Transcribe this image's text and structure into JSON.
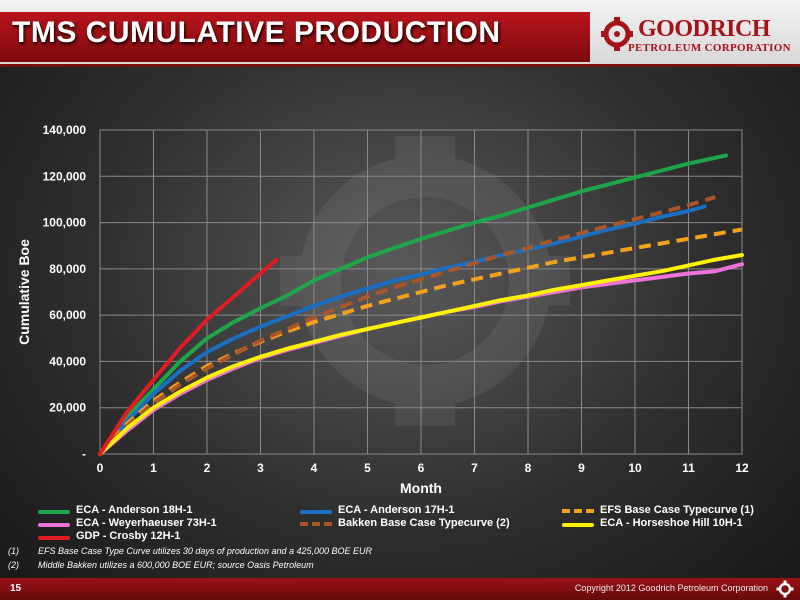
{
  "slide": {
    "title": "TMS CUMULATIVE PRODUCTION",
    "logo_name": "GOODRICH",
    "logo_sub": "PETROLEUM CORPORATION",
    "page_number": "15",
    "copyright": "Copyright 2012 Goodrich Petroleum Corporation"
  },
  "footnotes": [
    {
      "num": "(1)",
      "text": "EFS Base Case Type Curve utilizes 30 days of production and a 425,000 BOE EUR"
    },
    {
      "num": "(2)",
      "text": "Middle Bakken utilizes a 600,000 BOE EUR; source Oasis Petroleum"
    }
  ],
  "chart_data": {
    "type": "line",
    "title": "",
    "xlabel": "Month",
    "ylabel": "Cumulative Boe",
    "xlim": [
      0,
      12
    ],
    "ylim": [
      0,
      140000
    ],
    "x_ticks": [
      "0",
      "1",
      "2",
      "3",
      "4",
      "5",
      "6",
      "7",
      "8",
      "9",
      "10",
      "11",
      "12"
    ],
    "y_ticks": [
      "-",
      "20,000",
      "40,000",
      "60,000",
      "80,000",
      "100,000",
      "120,000",
      "140,000"
    ],
    "grid": true,
    "legend_position": "bottom",
    "series": [
      {
        "name": "ECA - Anderson 18H-1",
        "color": "#1fa54a",
        "dashed": false,
        "x": [
          0,
          0.5,
          1,
          1.5,
          2,
          2.5,
          3,
          3.5,
          4,
          4.5,
          5,
          5.5,
          6,
          6.5,
          7,
          7.5,
          8,
          8.5,
          9,
          9.5,
          10,
          10.5,
          11,
          11.7
        ],
        "y": [
          0,
          16000,
          28000,
          40000,
          50000,
          57000,
          63000,
          68500,
          75000,
          80000,
          85000,
          89000,
          93000,
          96500,
          100000,
          103000,
          106500,
          110000,
          113500,
          116500,
          119500,
          122500,
          125500,
          129000
        ]
      },
      {
        "name": "ECA - Anderson 17H-1",
        "color": "#1a6fc2",
        "dashed": false,
        "x": [
          0,
          0.5,
          1,
          1.5,
          2,
          2.5,
          3,
          3.5,
          4,
          4.5,
          5,
          5.5,
          6,
          6.5,
          7,
          7.5,
          8,
          8.5,
          9,
          9.5,
          10,
          10.5,
          11,
          11.3
        ],
        "y": [
          0,
          14000,
          26000,
          36000,
          44000,
          50000,
          55000,
          59500,
          64000,
          68000,
          71500,
          75000,
          77500,
          80500,
          83000,
          86000,
          88500,
          91000,
          94000,
          97000,
          99500,
          102500,
          105000,
          107000
        ]
      },
      {
        "name": "EFS Base Case Typecurve (1)",
        "color": "#f4a21c",
        "dashed": true,
        "x": [
          0,
          0.5,
          1,
          1.5,
          2,
          2.5,
          3,
          3.5,
          4,
          4.5,
          5,
          5.5,
          6,
          6.5,
          7,
          7.5,
          8,
          8.5,
          9,
          9.5,
          10,
          10.5,
          11,
          11.5,
          12
        ],
        "y": [
          0,
          13000,
          23000,
          31000,
          38000,
          43500,
          48500,
          53000,
          57000,
          60500,
          64000,
          67000,
          70000,
          73000,
          75500,
          78000,
          80500,
          83000,
          85000,
          87000,
          89000,
          91000,
          93000,
          95000,
          97000
        ]
      },
      {
        "name": "ECA - Weyerhaeuser 73H-1",
        "color": "#ee72d8",
        "dashed": false,
        "x": [
          0,
          0.5,
          1,
          1.5,
          2,
          2.5,
          3,
          3.5,
          4,
          4.5,
          5,
          5.5,
          6,
          6.5,
          7,
          7.5,
          8,
          8.5,
          9,
          9.5,
          10,
          10.5,
          11,
          11.5,
          12
        ],
        "y": [
          0,
          10000,
          19000,
          26000,
          32000,
          37000,
          41500,
          45000,
          48000,
          51000,
          54000,
          56500,
          59000,
          61500,
          63500,
          66000,
          68000,
          70000,
          72000,
          73500,
          75000,
          76500,
          78000,
          79000,
          82000
        ]
      },
      {
        "name": "Bakken Base Case Typecurve (2)",
        "color": "#a8562a",
        "dashed": true,
        "x": [
          0,
          0.5,
          1,
          1.5,
          2,
          2.5,
          3,
          3.5,
          4,
          4.5,
          5,
          5.5,
          6,
          6.5,
          7,
          7.5,
          8,
          8.5,
          9,
          9.5,
          10,
          10.5,
          11,
          11.5
        ],
        "y": [
          0,
          12000,
          22000,
          30000,
          37000,
          43000,
          49000,
          54000,
          59000,
          63500,
          68000,
          72000,
          75500,
          79000,
          82500,
          86000,
          89000,
          92500,
          95500,
          98500,
          101500,
          104500,
          107500,
          111000
        ]
      },
      {
        "name": "ECA - Horseshoe Hill 10H-1",
        "color": "#fff200",
        "dashed": false,
        "x": [
          0,
          0.5,
          1,
          1.5,
          2,
          2.5,
          3,
          3.5,
          4,
          4.5,
          5,
          5.5,
          6,
          6.5,
          7,
          7.5,
          8,
          8.5,
          9,
          9.5,
          10,
          10.5,
          11,
          11.5,
          12
        ],
        "y": [
          0,
          11000,
          20000,
          27000,
          33000,
          38000,
          42000,
          45500,
          48500,
          51500,
          54000,
          56500,
          59000,
          61500,
          64000,
          66500,
          68500,
          71000,
          73000,
          75000,
          77000,
          79000,
          81500,
          84000,
          86000
        ]
      },
      {
        "name": "GDP - Crosby 12H-1",
        "color": "#e31b23",
        "dashed": false,
        "x": [
          0,
          0.25,
          0.5,
          0.75,
          1,
          1.5,
          2,
          2.5,
          3,
          3.3
        ],
        "y": [
          0,
          9000,
          18000,
          25000,
          32000,
          46000,
          58000,
          68000,
          78000,
          84000
        ]
      }
    ]
  }
}
